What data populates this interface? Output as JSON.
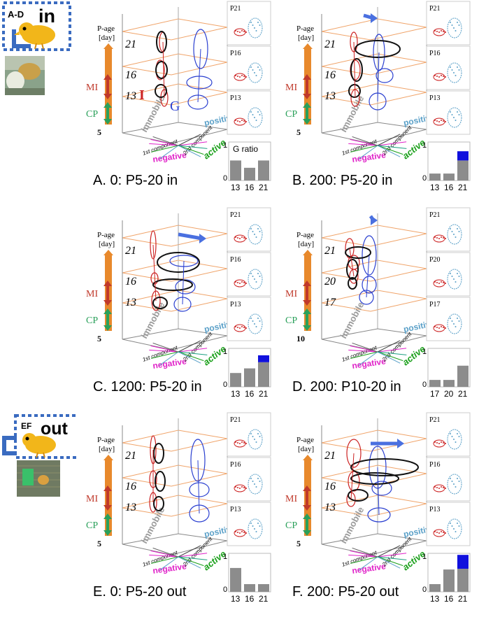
{
  "legend_top": {
    "label": "A-D",
    "word": "in"
  },
  "legend_bottom": {
    "label": "EF",
    "word": "out"
  },
  "axis": {
    "title_line1": "P-age",
    "title_line2": "[day]",
    "mi": "MI",
    "cp": "CP",
    "immobile": "immobile",
    "positive": "positive",
    "negative": "negative",
    "active": "active",
    "first_component": "1st component",
    "second_component": "2nd component"
  },
  "gratio_label": "G ratio",
  "colors": {
    "orange_bar": "#e8892c",
    "mi": "#c0392b",
    "cp": "#2aa05a",
    "red_trace": "#cc2222",
    "blue_trace": "#2a3fd0",
    "positive": "#5aa0c8",
    "negative": "#e020c8",
    "active": "#1aa01a",
    "immobile": "#9a9a9a",
    "bar_gray": "#8c8c8c",
    "bar_blue": "#1010dd",
    "grid": "#f0a46a",
    "arrow": "#4a70e0"
  },
  "panels": [
    {
      "caption": "A.   0: P5-20 in",
      "base_age": "5",
      "plane_labels": [
        "21",
        "16",
        "13"
      ],
      "side_labels": [
        "P21",
        "P16",
        "P13"
      ],
      "extra_labels": {
        "I": "I",
        "G": "G"
      },
      "bar_ticks": [
        "13",
        "16",
        "21"
      ],
      "y_top": "1",
      "y_bottom": "0",
      "gray": [
        0.52,
        0.33,
        0.52
      ],
      "blue": [
        0,
        0,
        0
      ]
    },
    {
      "caption": "B.   200: P5-20 in",
      "base_age": "5",
      "plane_labels": [
        "21",
        "16",
        "13"
      ],
      "side_labels": [
        "P21",
        "P16",
        "P13"
      ],
      "bar_ticks": [
        "13",
        "16",
        "21"
      ],
      "y_top": "1",
      "y_bottom": "0",
      "gray": [
        0.18,
        0.18,
        0.52
      ],
      "blue": [
        0,
        0,
        0.24
      ]
    },
    {
      "caption": "C. 1200: P5-20 in",
      "base_age": "5",
      "plane_labels": [
        "21",
        "16",
        "13"
      ],
      "side_labels": [
        "P21",
        "P16",
        "P13"
      ],
      "bar_ticks": [
        "13",
        "16",
        "21"
      ],
      "y_top": "1",
      "y_bottom": "0",
      "gray": [
        0.36,
        0.48,
        0.64
      ],
      "blue": [
        0,
        0,
        0.18
      ]
    },
    {
      "caption": "D.  200: P10-20 in",
      "base_age": "10",
      "plane_labels": [
        "21",
        "20",
        "17"
      ],
      "side_labels": [
        "P21",
        "P20",
        "P17"
      ],
      "bar_ticks": [
        "17",
        "20",
        "21"
      ],
      "y_top": "1",
      "y_bottom": "0",
      "gray": [
        0.18,
        0.18,
        0.55
      ],
      "blue": [
        0,
        0,
        0
      ]
    },
    {
      "caption": "E.   0: P5-20 out",
      "base_age": "5",
      "plane_labels": [
        "21",
        "16",
        "13"
      ],
      "side_labels": [
        "P21",
        "P16",
        "P13"
      ],
      "bar_ticks": [
        "13",
        "16",
        "21"
      ],
      "y_top": "1",
      "y_bottom": "0",
      "gray": [
        0.62,
        0.2,
        0.2
      ],
      "blue": [
        0,
        0,
        0
      ]
    },
    {
      "caption": "F.  200: P5-20 out",
      "base_age": "5",
      "plane_labels": [
        "21",
        "16",
        "13"
      ],
      "side_labels": [
        "P21",
        "P16",
        "P13"
      ],
      "bar_ticks": [
        "13",
        "16",
        "21"
      ],
      "y_top": "1",
      "y_bottom": "0",
      "gray": [
        0.2,
        0.58,
        0.6
      ],
      "blue": [
        0,
        0,
        0.36
      ]
    }
  ]
}
